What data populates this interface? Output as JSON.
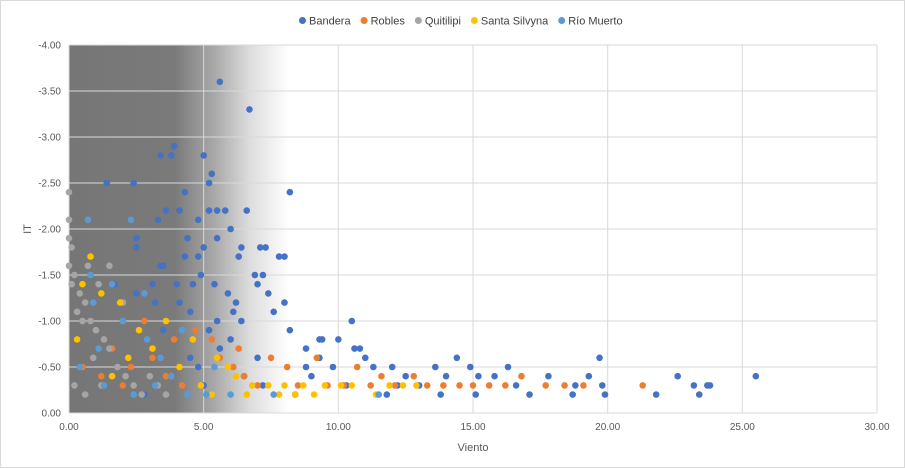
{
  "chart_data": {
    "type": "scatter",
    "title": "",
    "xlabel": "Viento",
    "ylabel": "IT",
    "xlim": [
      0,
      30
    ],
    "ylim": [
      0,
      -4
    ],
    "x_ticks": [
      "0.00",
      "5.00",
      "10.00",
      "15.00",
      "20.00",
      "25.00",
      "30.00"
    ],
    "y_ticks": [
      "0.00",
      "-0.50",
      "-1.00",
      "-1.50",
      "-2.00",
      "-2.50",
      "-3.00",
      "-3.50",
      "-4.00"
    ],
    "y_reversed": true,
    "grid": true,
    "legend_position": "top",
    "series": [
      {
        "name": "Bandera",
        "color": "#4472C4",
        "points": [
          [
            5.6,
            -3.6
          ],
          [
            6.7,
            -3.3
          ],
          [
            3.9,
            -2.9
          ],
          [
            3.8,
            -2.8
          ],
          [
            3.4,
            -2.8
          ],
          [
            5.0,
            -2.8
          ],
          [
            5.3,
            -2.6
          ],
          [
            5.2,
            -2.5
          ],
          [
            1.4,
            -2.5
          ],
          [
            2.4,
            -2.5
          ],
          [
            4.3,
            -2.4
          ],
          [
            8.2,
            -2.4
          ],
          [
            4.1,
            -2.2
          ],
          [
            3.6,
            -2.2
          ],
          [
            5.2,
            -2.2
          ],
          [
            5.5,
            -2.2
          ],
          [
            5.8,
            -2.2
          ],
          [
            6.6,
            -2.2
          ],
          [
            3.3,
            -2.1
          ],
          [
            4.8,
            -2.1
          ],
          [
            6.0,
            -2.0
          ],
          [
            4.4,
            -1.9
          ],
          [
            5.5,
            -1.9
          ],
          [
            2.5,
            -1.9
          ],
          [
            5.0,
            -1.8
          ],
          [
            6.4,
            -1.8
          ],
          [
            7.1,
            -1.8
          ],
          [
            7.3,
            -1.8
          ],
          [
            2.5,
            -1.8
          ],
          [
            4.8,
            -1.7
          ],
          [
            6.3,
            -1.7
          ],
          [
            7.8,
            -1.7
          ],
          [
            8.0,
            -1.7
          ],
          [
            4.3,
            -1.7
          ],
          [
            3.4,
            -1.6
          ],
          [
            3.5,
            -1.6
          ],
          [
            6.9,
            -1.5
          ],
          [
            7.2,
            -1.5
          ],
          [
            4.9,
            -1.5
          ],
          [
            1.7,
            -1.4
          ],
          [
            3.1,
            -1.4
          ],
          [
            4.0,
            -1.4
          ],
          [
            4.6,
            -1.4
          ],
          [
            5.4,
            -1.4
          ],
          [
            7.0,
            -1.4
          ],
          [
            2.5,
            -1.3
          ],
          [
            7.4,
            -1.3
          ],
          [
            5.9,
            -1.3
          ],
          [
            6.2,
            -1.2
          ],
          [
            3.2,
            -1.2
          ],
          [
            4.1,
            -1.2
          ],
          [
            8.0,
            -1.2
          ],
          [
            4.5,
            -1.1
          ],
          [
            6.1,
            -1.1
          ],
          [
            7.6,
            -1.1
          ],
          [
            5.5,
            -1.0
          ],
          [
            6.4,
            -1.0
          ],
          [
            10.5,
            -1.0
          ],
          [
            5.2,
            -0.9
          ],
          [
            8.2,
            -0.9
          ],
          [
            3.5,
            -0.9
          ],
          [
            9.3,
            -0.8
          ],
          [
            9.4,
            -0.8
          ],
          [
            10.0,
            -0.8
          ],
          [
            6.0,
            -0.8
          ],
          [
            8.8,
            -0.7
          ],
          [
            10.6,
            -0.7
          ],
          [
            10.8,
            -0.7
          ],
          [
            5.6,
            -0.7
          ],
          [
            9.3,
            -0.6
          ],
          [
            11.0,
            -0.6
          ],
          [
            14.4,
            -0.6
          ],
          [
            19.7,
            -0.6
          ],
          [
            4.5,
            -0.6
          ],
          [
            7.0,
            -0.6
          ],
          [
            8.8,
            -0.5
          ],
          [
            11.3,
            -0.5
          ],
          [
            12.0,
            -0.5
          ],
          [
            13.6,
            -0.5
          ],
          [
            14.9,
            -0.5
          ],
          [
            16.3,
            -0.5
          ],
          [
            4.8,
            -0.5
          ],
          [
            9.8,
            -0.5
          ],
          [
            12.5,
            -0.4
          ],
          [
            14.0,
            -0.4
          ],
          [
            15.2,
            -0.4
          ],
          [
            15.8,
            -0.4
          ],
          [
            17.8,
            -0.4
          ],
          [
            19.3,
            -0.4
          ],
          [
            22.6,
            -0.4
          ],
          [
            25.5,
            -0.4
          ],
          [
            6.5,
            -0.4
          ],
          [
            9.0,
            -0.4
          ],
          [
            13.0,
            -0.3
          ],
          [
            16.6,
            -0.3
          ],
          [
            18.8,
            -0.3
          ],
          [
            19.8,
            -0.3
          ],
          [
            23.2,
            -0.3
          ],
          [
            23.7,
            -0.3
          ],
          [
            23.8,
            -0.3
          ],
          [
            5.0,
            -0.3
          ],
          [
            7.2,
            -0.3
          ],
          [
            11.8,
            -0.2
          ],
          [
            13.8,
            -0.2
          ],
          [
            15.1,
            -0.2
          ],
          [
            17.1,
            -0.2
          ],
          [
            18.7,
            -0.2
          ],
          [
            19.9,
            -0.2
          ],
          [
            21.8,
            -0.2
          ],
          [
            23.4,
            -0.2
          ],
          [
            2.8,
            -0.2
          ],
          [
            8.4,
            -0.2
          ],
          [
            10.3,
            -0.3
          ],
          [
            12.2,
            -0.3
          ]
        ]
      },
      {
        "name": "Robles",
        "color": "#ED7D31",
        "points": [
          [
            1.6,
            -0.7
          ],
          [
            2.3,
            -0.5
          ],
          [
            3.1,
            -0.6
          ],
          [
            3.6,
            -0.4
          ],
          [
            4.2,
            -0.3
          ],
          [
            5.3,
            -0.8
          ],
          [
            5.6,
            -0.6
          ],
          [
            6.1,
            -0.5
          ],
          [
            6.5,
            -0.4
          ],
          [
            7.0,
            -0.3
          ],
          [
            7.5,
            -0.6
          ],
          [
            8.1,
            -0.5
          ],
          [
            8.5,
            -0.3
          ],
          [
            9.2,
            -0.6
          ],
          [
            9.6,
            -0.3
          ],
          [
            10.2,
            -0.3
          ],
          [
            10.7,
            -0.5
          ],
          [
            11.2,
            -0.3
          ],
          [
            11.6,
            -0.4
          ],
          [
            12.1,
            -0.3
          ],
          [
            12.8,
            -0.4
          ],
          [
            13.3,
            -0.3
          ],
          [
            13.9,
            -0.3
          ],
          [
            14.5,
            -0.3
          ],
          [
            15.0,
            -0.3
          ],
          [
            15.6,
            -0.3
          ],
          [
            16.2,
            -0.3
          ],
          [
            16.8,
            -0.4
          ],
          [
            17.7,
            -0.3
          ],
          [
            18.4,
            -0.3
          ],
          [
            19.1,
            -0.3
          ],
          [
            21.3,
            -0.3
          ],
          [
            4.7,
            -0.9
          ],
          [
            2.8,
            -1.0
          ],
          [
            6.3,
            -0.7
          ],
          [
            1.2,
            -0.4
          ],
          [
            0.5,
            -0.5
          ],
          [
            3.9,
            -0.8
          ],
          [
            2.0,
            -0.3
          ],
          [
            1.0,
            -0.9
          ]
        ]
      },
      {
        "name": "Quitilipi",
        "color": "#A5A5A5",
        "points": [
          [
            0.0,
            -2.4
          ],
          [
            0.0,
            -2.1
          ],
          [
            0.0,
            -1.9
          ],
          [
            0.1,
            -1.8
          ],
          [
            0.0,
            -1.6
          ],
          [
            0.2,
            -1.5
          ],
          [
            0.1,
            -1.4
          ],
          [
            0.4,
            -1.3
          ],
          [
            0.6,
            -1.2
          ],
          [
            0.3,
            -1.1
          ],
          [
            0.8,
            -1.0
          ],
          [
            1.0,
            -0.9
          ],
          [
            1.3,
            -0.8
          ],
          [
            1.5,
            -0.7
          ],
          [
            0.9,
            -0.6
          ],
          [
            1.8,
            -0.5
          ],
          [
            2.1,
            -0.4
          ],
          [
            2.4,
            -0.3
          ],
          [
            2.7,
            -0.2
          ],
          [
            3.0,
            -0.4
          ],
          [
            3.3,
            -0.3
          ],
          [
            3.6,
            -0.2
          ],
          [
            1.5,
            -1.6
          ],
          [
            0.7,
            -1.6
          ],
          [
            1.1,
            -1.4
          ],
          [
            0.5,
            -1.0
          ],
          [
            2.0,
            -1.2
          ],
          [
            0.2,
            -0.3
          ],
          [
            0.6,
            -0.2
          ],
          [
            1.2,
            -0.3
          ]
        ]
      },
      {
        "name": "Santa Silvyna",
        "color": "#FFC000",
        "points": [
          [
            0.8,
            -1.7
          ],
          [
            0.5,
            -1.4
          ],
          [
            1.9,
            -1.2
          ],
          [
            3.6,
            -1.0
          ],
          [
            4.6,
            -0.8
          ],
          [
            5.5,
            -0.6
          ],
          [
            5.9,
            -0.5
          ],
          [
            6.2,
            -0.4
          ],
          [
            6.8,
            -0.3
          ],
          [
            7.4,
            -0.3
          ],
          [
            8.0,
            -0.3
          ],
          [
            8.7,
            -0.3
          ],
          [
            9.1,
            -0.2
          ],
          [
            9.5,
            -0.3
          ],
          [
            10.1,
            -0.3
          ],
          [
            10.5,
            -0.3
          ],
          [
            11.4,
            -0.2
          ],
          [
            11.9,
            -0.3
          ],
          [
            12.4,
            -0.3
          ],
          [
            12.9,
            -0.3
          ],
          [
            1.2,
            -1.3
          ],
          [
            2.6,
            -0.9
          ],
          [
            3.1,
            -0.7
          ],
          [
            4.1,
            -0.5
          ],
          [
            4.9,
            -0.3
          ],
          [
            5.3,
            -0.2
          ],
          [
            2.2,
            -0.6
          ],
          [
            0.3,
            -0.8
          ],
          [
            1.6,
            -0.4
          ],
          [
            6.6,
            -0.2
          ],
          [
            7.8,
            -0.2
          ],
          [
            8.4,
            -0.2
          ]
        ]
      },
      {
        "name": "Río Muerto",
        "color": "#5B9BD5",
        "points": [
          [
            0.7,
            -2.1
          ],
          [
            2.3,
            -2.1
          ],
          [
            1.6,
            -1.4
          ],
          [
            0.9,
            -1.2
          ],
          [
            2.0,
            -1.0
          ],
          [
            2.9,
            -0.8
          ],
          [
            3.4,
            -0.6
          ],
          [
            0.4,
            -0.5
          ],
          [
            1.3,
            -0.3
          ],
          [
            2.4,
            -0.2
          ],
          [
            3.2,
            -0.3
          ],
          [
            4.4,
            -0.2
          ],
          [
            5.1,
            -0.2
          ],
          [
            6.0,
            -0.2
          ],
          [
            7.6,
            -0.2
          ],
          [
            11.5,
            -0.2
          ],
          [
            0.8,
            -1.5
          ],
          [
            2.8,
            -1.3
          ],
          [
            1.1,
            -0.7
          ],
          [
            3.8,
            -0.4
          ],
          [
            4.2,
            -0.9
          ],
          [
            5.4,
            -0.5
          ]
        ]
      }
    ]
  }
}
